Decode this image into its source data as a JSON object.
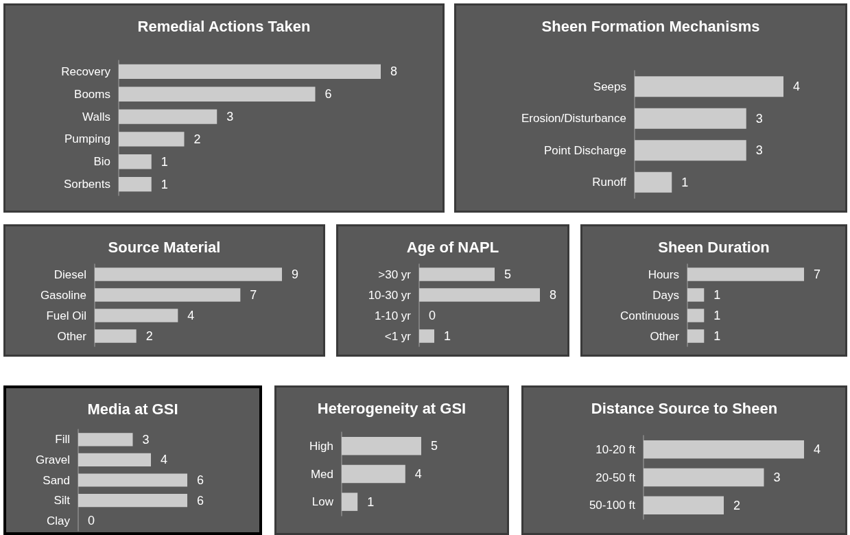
{
  "chart_data": [
    {
      "type": "bar",
      "orientation": "horizontal",
      "title": "Remedial Actions Taken",
      "categories": [
        "Recovery",
        "Booms",
        "Walls",
        "Pumping",
        "Bio",
        "Sorbents"
      ],
      "values": [
        8,
        6,
        3,
        2,
        1,
        1
      ],
      "color": "#cccccc",
      "data_labels": true
    },
    {
      "type": "bar",
      "orientation": "horizontal",
      "title": "Sheen Formation Mechanisms",
      "categories": [
        "Seeps",
        "Erosion/Disturbance",
        "Point Discharge",
        "Runoff"
      ],
      "values": [
        4,
        3,
        3,
        1
      ],
      "color": "#cccccc",
      "data_labels": true
    },
    {
      "type": "bar",
      "orientation": "horizontal",
      "title": "Source Material",
      "categories": [
        "Diesel",
        "Gasoline",
        "Fuel Oil",
        "Other"
      ],
      "values": [
        9,
        7,
        4,
        2
      ],
      "color": "#cccccc",
      "data_labels": true
    },
    {
      "type": "bar",
      "orientation": "horizontal",
      "title": "Age of NAPL",
      "categories": [
        ">30 yr",
        "10-30 yr",
        "1-10 yr",
        "<1 yr"
      ],
      "values": [
        5,
        8,
        0,
        1
      ],
      "color": "#cccccc",
      "data_labels": true
    },
    {
      "type": "bar",
      "orientation": "horizontal",
      "title": "Sheen Duration",
      "categories": [
        "Hours",
        "Days",
        "Continuous",
        "Other"
      ],
      "values": [
        7,
        1,
        1,
        1
      ],
      "color": "#cccccc",
      "data_labels": true
    },
    {
      "type": "bar",
      "orientation": "horizontal",
      "title": "Media at GSI",
      "categories": [
        "Fill",
        "Gravel",
        "Sand",
        "Silt",
        "Clay"
      ],
      "values": [
        3,
        4,
        6,
        6,
        0
      ],
      "color": "#cccccc",
      "data_labels": true
    },
    {
      "type": "bar",
      "orientation": "horizontal",
      "title": "Heterogeneity at GSI",
      "categories": [
        "High",
        "Med",
        "Low"
      ],
      "values": [
        5,
        4,
        1
      ],
      "color": "#cccccc",
      "data_labels": true
    },
    {
      "type": "bar",
      "orientation": "horizontal",
      "title": "Distance Source to Sheen",
      "categories": [
        "10-20 ft",
        "20-50 ft",
        "50-100 ft"
      ],
      "values": [
        4,
        3,
        2
      ],
      "color": "#cccccc",
      "data_labels": true
    }
  ]
}
